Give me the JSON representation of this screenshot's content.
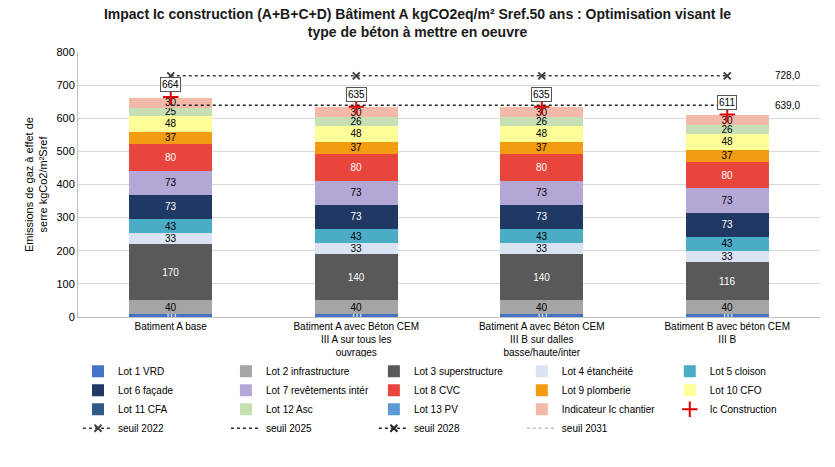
{
  "chart_data": {
    "type": "bar",
    "stacked": true,
    "title": "Impact Ic construction (A+B+C+D) Bâtiment A kgCO2eq/m² Sref.50 ans : Optimisation visant le type de béton à mettre en oeuvre",
    "y_label": "Emissions de gaz à effet de serre kgCo2/m²Sref",
    "categories": [
      "Batiment A base",
      "Batiment A avec Béton CEM III A sur tous les ouvrages",
      "Batiment A avec Béton CEM III B sur dalles basse/haute/inter",
      "Batiment B avec béton CEM III B"
    ],
    "ylim": [
      0,
      800
    ],
    "yticks": [
      0,
      100,
      200,
      300,
      400,
      500,
      600,
      700,
      800
    ],
    "grid": true,
    "data_labels": true,
    "legend": "bottom",
    "series": [
      {
        "name": "Lot 1 VRD",
        "color": "#4472c4",
        "values": [
          10,
          10,
          10,
          10
        ]
      },
      {
        "name": "Lot 2 infrastructure",
        "color": "#a5a5a5",
        "values": [
          40,
          40,
          40,
          40
        ]
      },
      {
        "name": "Lot 3 superstructure",
        "color": "#595959",
        "values": [
          170,
          140,
          140,
          116
        ]
      },
      {
        "name": "Lot 4 étanchéité",
        "color": "#dae3f3",
        "values": [
          33,
          33,
          33,
          33
        ]
      },
      {
        "name": "Lot 5 cloison",
        "color": "#4bacc6",
        "values": [
          43,
          43,
          43,
          43
        ]
      },
      {
        "name": "Lot 6 façade",
        "color": "#1f3864",
        "values": [
          73,
          73,
          73,
          73
        ]
      },
      {
        "name": "Lot 7 revêtements intér",
        "color": "#b4a7d6",
        "values": [
          73,
          73,
          73,
          73
        ]
      },
      {
        "name": "Lot 8 CVC",
        "color": "#e8453c",
        "values": [
          80,
          80,
          80,
          80
        ]
      },
      {
        "name": "Lot 9 plomberie",
        "color": "#f39c12",
        "values": [
          37,
          37,
          37,
          37
        ]
      },
      {
        "name": "Lot 10 CFO",
        "color": "#ffff99",
        "values": [
          48,
          48,
          48,
          48
        ]
      },
      {
        "name": "Lot 11 CFA",
        "color": "#2e5a88",
        "values": [
          null,
          null,
          null,
          null
        ]
      },
      {
        "name": "Lot 12 Asc",
        "color": "#c6e0b4",
        "values": [
          25,
          26,
          26,
          26
        ]
      },
      {
        "name": "Lot 13 PV",
        "color": "#5b9bd5",
        "values": [
          null,
          null,
          null,
          null
        ]
      },
      {
        "name": "Indicateur Ic chantier",
        "color": "#f4b9a8",
        "values": [
          30,
          30,
          30,
          30
        ]
      },
      {
        "name": "Ic Construction",
        "type": "scatter",
        "color": "#e00000",
        "marker": "cross",
        "values": [
          664,
          635,
          635,
          611
        ]
      },
      {
        "name": "seuil 2022",
        "type": "line",
        "color": "#404040",
        "line_style": "dot",
        "marker": "x",
        "values": [
          728,
          728,
          728,
          728
        ],
        "value_labels": [
          null,
          null,
          null,
          "728,0"
        ]
      },
      {
        "name": "seuil 2025",
        "type": "line",
        "color": "#262626",
        "line_style": "dot",
        "values": [
          639,
          639,
          639,
          639
        ],
        "value_labels": [
          null,
          null,
          null,
          "639,0"
        ]
      },
      {
        "name": "seuil 2028",
        "type": "line",
        "color": "#262626",
        "line_style": "dot",
        "marker": "x",
        "values": [
          null,
          null,
          null,
          null
        ]
      },
      {
        "name": "seuil 2031",
        "type": "line",
        "color": "#bfbfbf",
        "line_style": "dot",
        "values": [
          null,
          null,
          null,
          null
        ]
      }
    ]
  }
}
